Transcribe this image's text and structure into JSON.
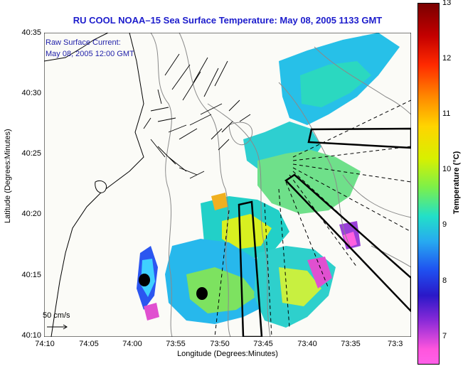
{
  "title": "RU COOL  NOAA–15  Sea Surface Temperature:  May 08, 2005 1133 GMT",
  "annotation": {
    "line1": "Raw Surface Current:",
    "line2": "May 08, 2005 12:00 GMT"
  },
  "scale_label": "50 cm/s",
  "y_axis": {
    "label": "Latitude (Degrees:Minutes)",
    "ticks": [
      "40:35",
      "40:30",
      "40:25",
      "40:20",
      "40:15",
      "40:10"
    ]
  },
  "x_axis": {
    "label": "Longitude (Degrees:Minutes)",
    "ticks": [
      "74:10",
      "74:05",
      "74:00",
      "73:55",
      "73:50",
      "73:45",
      "73:40",
      "73:35",
      "73:3"
    ]
  },
  "colorbar": {
    "label": "Temperature (°C)",
    "ticks": [
      "13",
      "12",
      "11",
      "10",
      "9",
      "8",
      "7"
    ]
  },
  "colors": {
    "title": "#1c1ccc",
    "annotation": "#2222aa",
    "land": "#fbfbf7"
  }
}
